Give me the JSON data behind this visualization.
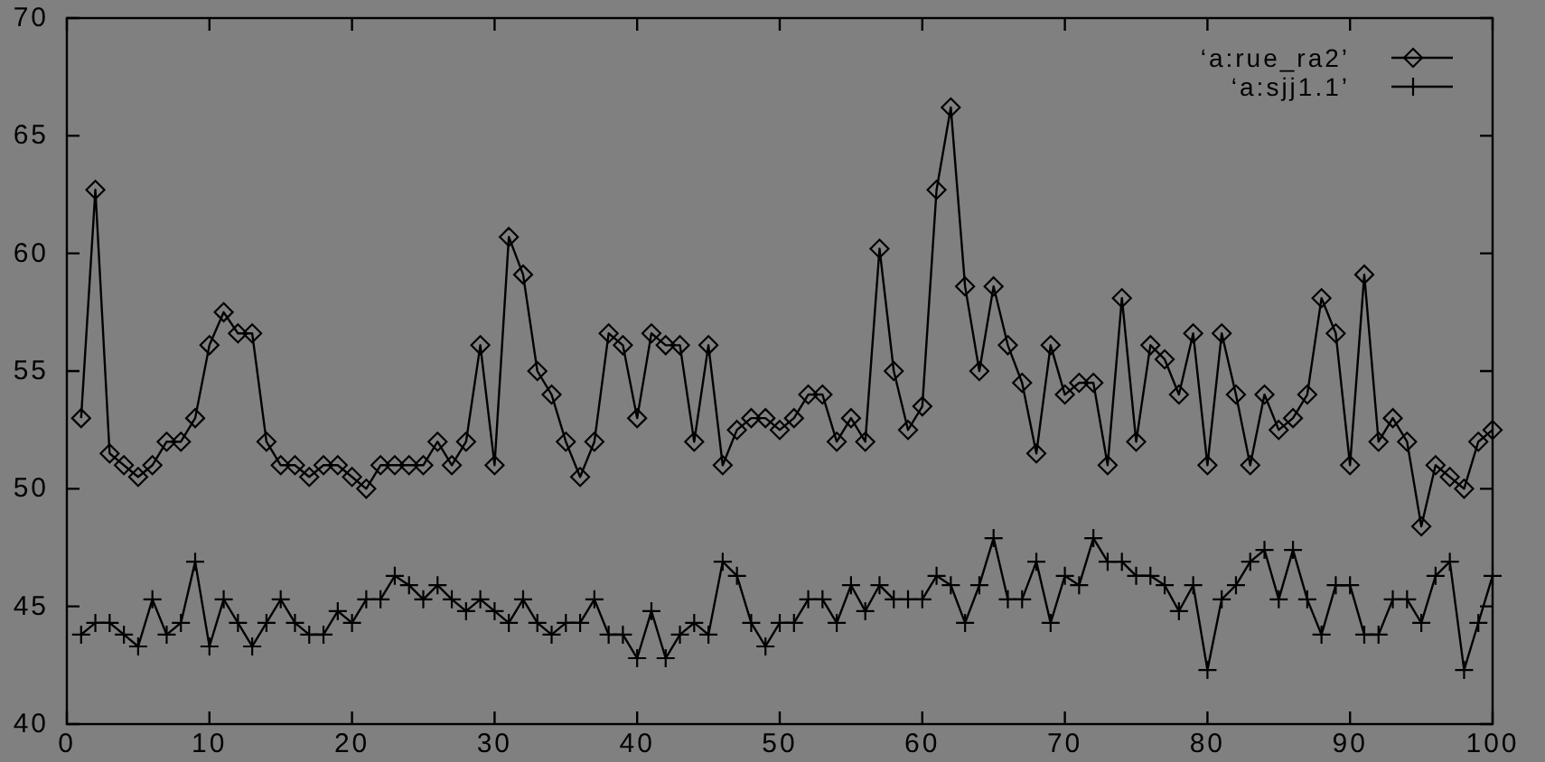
{
  "chart_data": {
    "type": "line",
    "x": [
      1,
      2,
      3,
      4,
      5,
      6,
      7,
      8,
      9,
      10,
      11,
      12,
      13,
      14,
      15,
      16,
      17,
      18,
      19,
      20,
      21,
      22,
      23,
      24,
      25,
      26,
      27,
      28,
      29,
      30,
      31,
      32,
      33,
      34,
      35,
      36,
      37,
      38,
      39,
      40,
      41,
      42,
      43,
      44,
      45,
      46,
      47,
      48,
      49,
      50,
      51,
      52,
      53,
      54,
      55,
      56,
      57,
      58,
      59,
      60,
      61,
      62,
      63,
      64,
      65,
      66,
      67,
      68,
      69,
      70,
      71,
      72,
      73,
      74,
      75,
      76,
      77,
      78,
      79,
      80,
      81,
      82,
      83,
      84,
      85,
      86,
      87,
      88,
      89,
      90,
      91,
      92,
      93,
      94,
      95,
      96,
      97,
      98,
      99,
      100
    ],
    "series": [
      {
        "name": "‘a:rue_ra2’",
        "color": "#000000",
        "marker": "diamond",
        "values": [
          53.0,
          62.7,
          51.5,
          51.0,
          50.5,
          51.0,
          52.0,
          52.0,
          53.0,
          56.1,
          57.5,
          56.6,
          56.6,
          52.0,
          51.0,
          51.0,
          50.5,
          51.0,
          51.0,
          50.5,
          50.0,
          51.0,
          51.0,
          51.0,
          51.0,
          52.0,
          51.0,
          52.0,
          56.1,
          51.0,
          60.7,
          59.1,
          55.0,
          54.0,
          52.0,
          50.5,
          52.0,
          56.6,
          56.1,
          53.0,
          56.6,
          56.1,
          56.1,
          52.0,
          56.1,
          51.0,
          52.5,
          53.0,
          53.0,
          52.5,
          53.0,
          54.0,
          54.0,
          52.0,
          53.0,
          52.0,
          60.2,
          55.0,
          52.5,
          53.5,
          62.7,
          66.2,
          58.6,
          55.0,
          58.6,
          56.1,
          54.5,
          51.5,
          56.1,
          54.0,
          54.5,
          54.5,
          51.0,
          58.1,
          52.0,
          56.1,
          55.5,
          54.0,
          56.6,
          51.0,
          56.6,
          54.0,
          51.0,
          54.0,
          52.5,
          53.0,
          54.0,
          58.1,
          56.6,
          51.0,
          59.1,
          52.0,
          53.0,
          52.0,
          48.4,
          51.0,
          50.5,
          50.0,
          52.0,
          52.5
        ]
      },
      {
        "name": "‘a:sjj1.1’",
        "color": "#000000",
        "marker": "cross",
        "values": [
          43.8,
          44.3,
          44.3,
          43.8,
          43.3,
          45.3,
          43.8,
          44.3,
          46.9,
          43.3,
          45.3,
          44.3,
          43.3,
          44.3,
          45.3,
          44.3,
          43.8,
          43.8,
          44.8,
          44.3,
          45.3,
          45.3,
          46.3,
          45.9,
          45.3,
          45.9,
          45.3,
          44.8,
          45.3,
          44.8,
          44.3,
          45.3,
          44.3,
          43.8,
          44.3,
          44.3,
          45.3,
          43.8,
          43.8,
          42.8,
          44.8,
          42.8,
          43.8,
          44.3,
          43.8,
          46.9,
          46.3,
          44.3,
          43.3,
          44.3,
          44.3,
          45.3,
          45.3,
          44.3,
          45.9,
          44.8,
          45.9,
          45.3,
          45.3,
          45.3,
          46.3,
          45.9,
          44.3,
          45.9,
          47.9,
          45.3,
          45.3,
          46.9,
          44.3,
          46.3,
          45.9,
          47.9,
          46.9,
          46.9,
          46.3,
          46.3,
          45.9,
          44.8,
          45.9,
          42.3,
          45.3,
          45.9,
          46.9,
          47.4,
          45.3,
          47.4,
          45.3,
          43.8,
          45.9,
          45.9,
          43.8,
          43.8,
          45.3,
          45.3,
          44.3,
          46.3,
          46.9,
          42.3,
          44.3,
          46.3
        ]
      }
    ],
    "xlim": [
      0,
      100
    ],
    "xticks": [
      0,
      10,
      20,
      30,
      40,
      50,
      60,
      70,
      80,
      90,
      100
    ],
    "ylim": [
      40,
      70
    ],
    "yticks": [
      40,
      45,
      50,
      55,
      60,
      65,
      70
    ],
    "grid": false,
    "legend": "top right",
    "line_style": "solid"
  }
}
